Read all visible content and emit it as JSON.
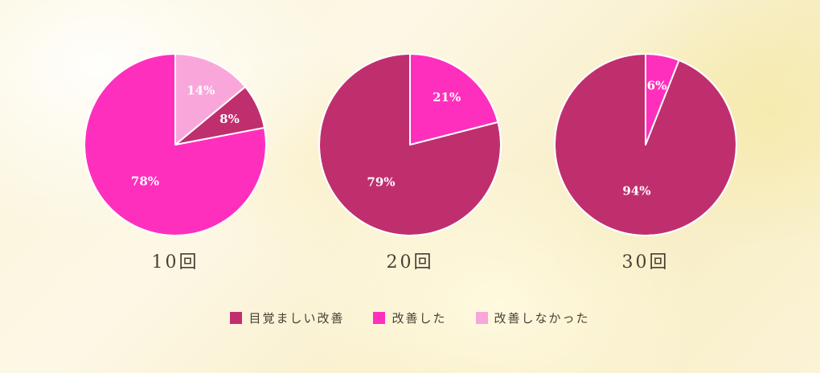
{
  "chart_data": {
    "type": "pie",
    "legend": {
      "placement": "bottom-center",
      "items": [
        {
          "label": "目覚ましい改善",
          "color": "#bf2f6e"
        },
        {
          "label": "改善した",
          "color": "#ff2fbd"
        },
        {
          "label": "改善しなかった",
          "color": "#f9a7da"
        }
      ]
    },
    "pies": [
      {
        "title": "10回",
        "slices": [
          {
            "category": "改善した",
            "value": 78,
            "label": "78%"
          },
          {
            "category": "目覚ましい改善",
            "value": 8,
            "label": "8%"
          },
          {
            "category": "改善しなかった",
            "value": 14,
            "label": "14%"
          }
        ]
      },
      {
        "title": "20回",
        "slices": [
          {
            "category": "目覚ましい改善",
            "value": 79,
            "label": "79%"
          },
          {
            "category": "改善した",
            "value": 21,
            "label": "21%"
          }
        ]
      },
      {
        "title": "30回",
        "slices": [
          {
            "category": "目覚ましい改善",
            "value": 94,
            "label": "94%"
          },
          {
            "category": "改善した",
            "value": 6,
            "label": "6%"
          }
        ]
      }
    ]
  }
}
